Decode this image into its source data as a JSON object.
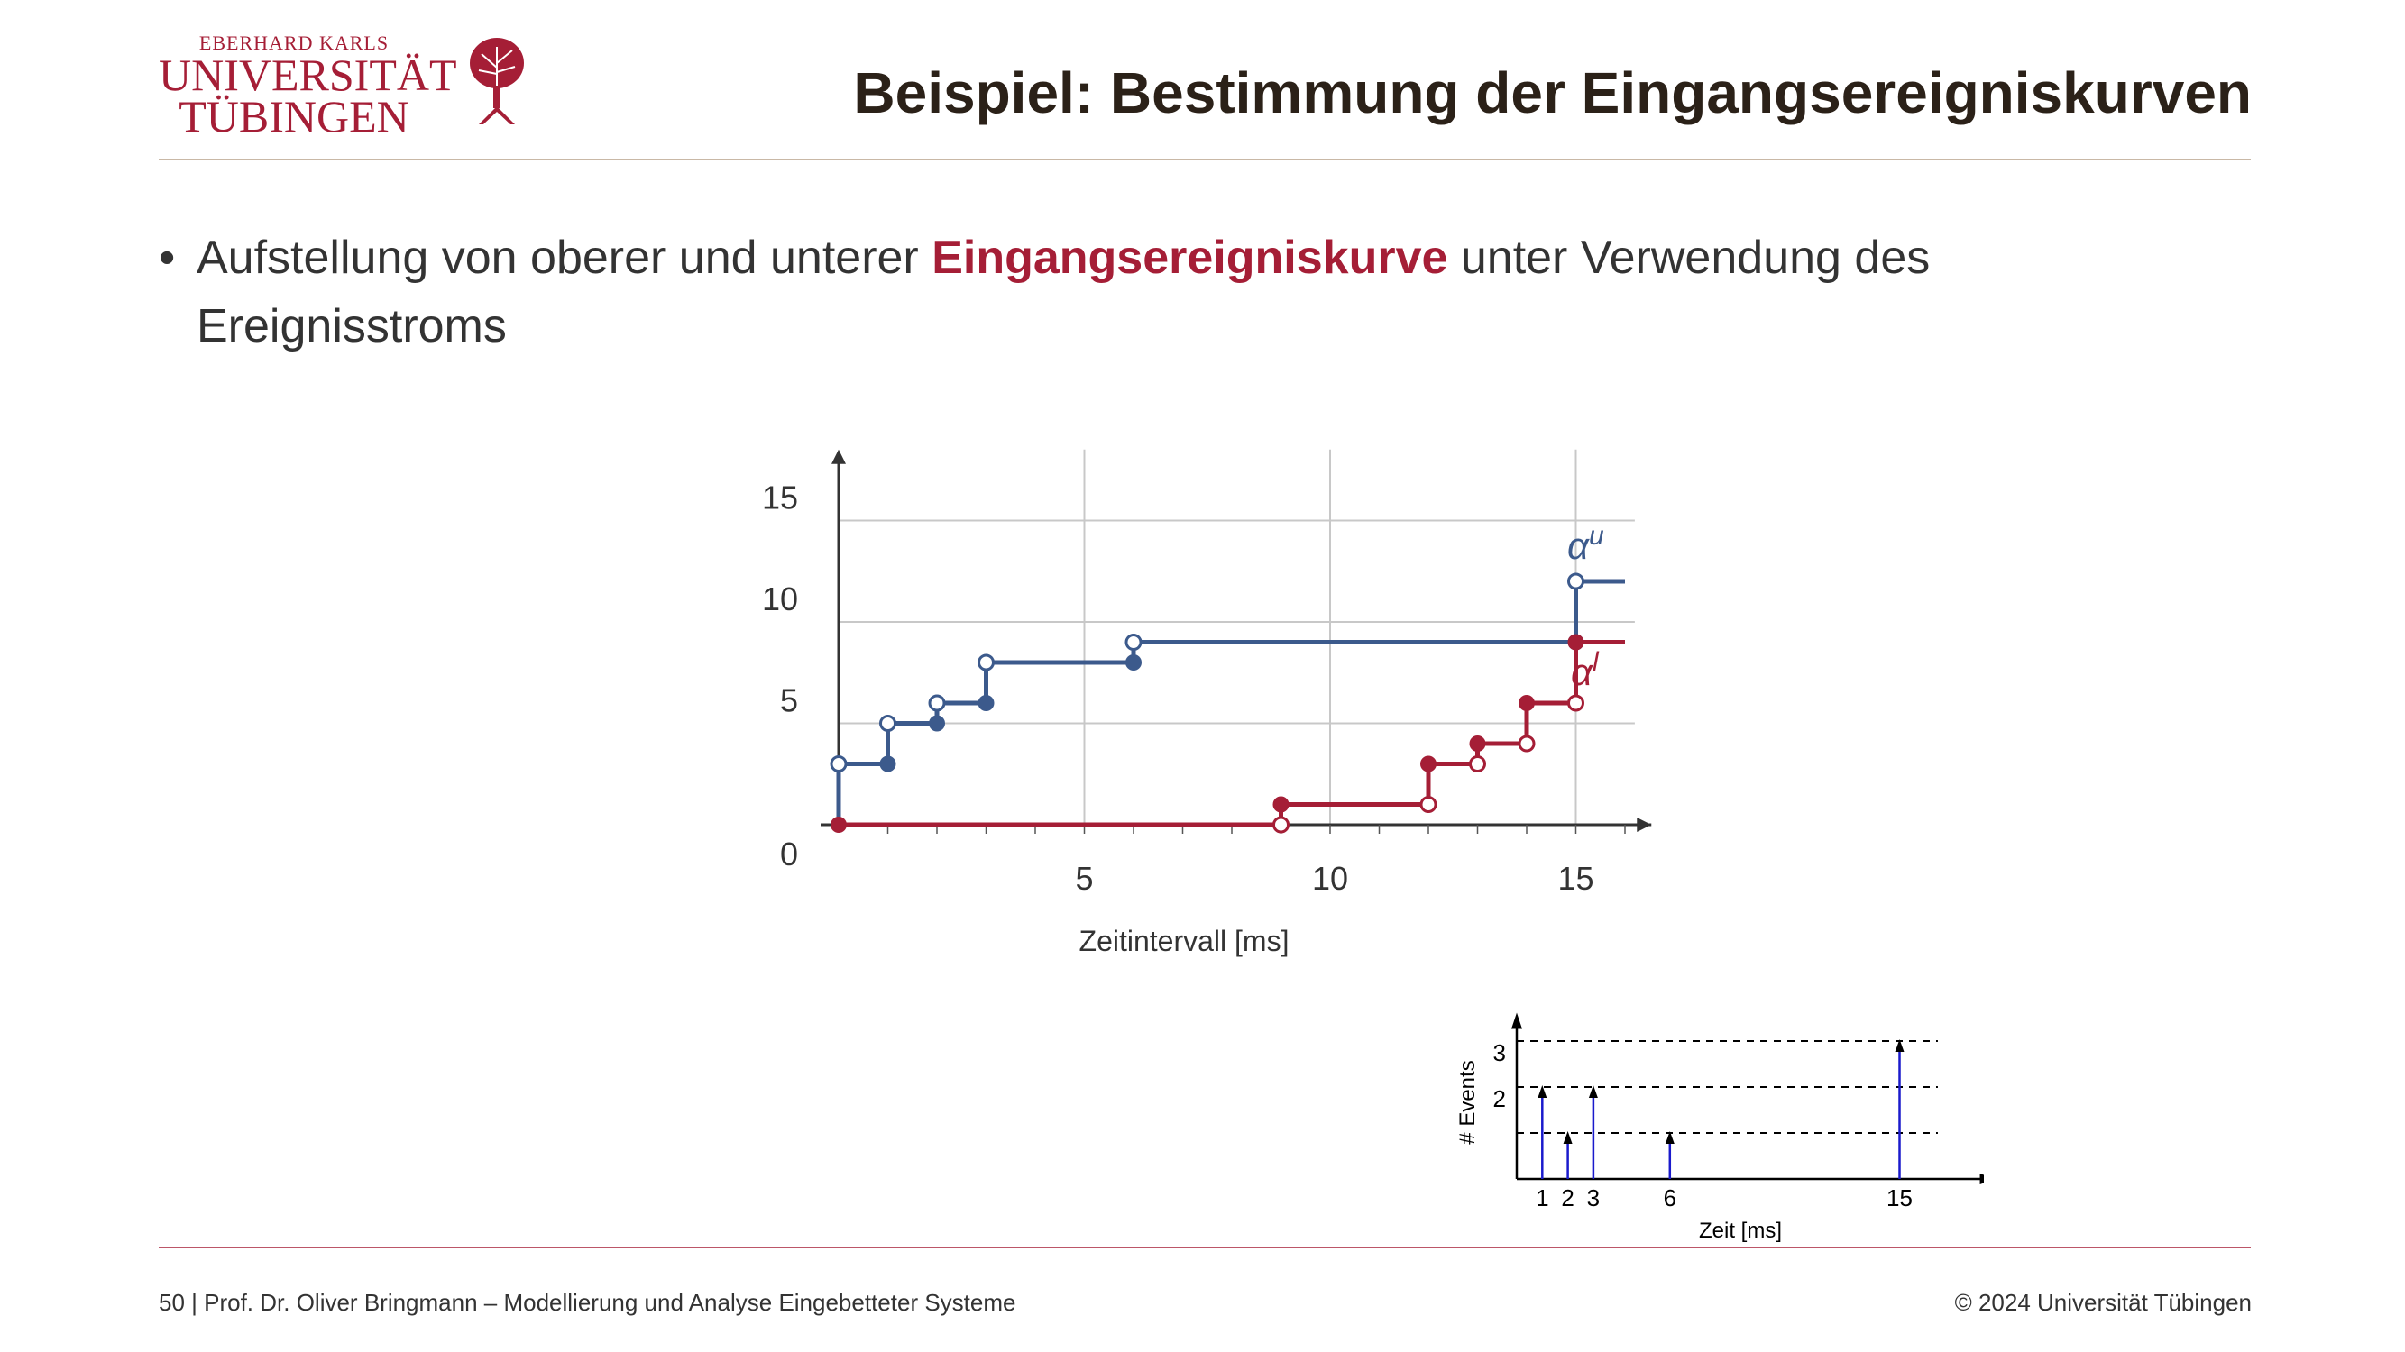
{
  "logo": {
    "line1": "EBERHARD KARLS",
    "line2": "UNIVERSITÄT",
    "line3": "TÜBINGEN"
  },
  "title": "Beispiel: Bestimmung der Eingangsereigniskurven",
  "bullet": {
    "before": "Aufstellung von oberer und unterer ",
    "highlight": "Eingangsereigniskurve",
    "after": " unter Verwendung des Ereignisstroms"
  },
  "colors": {
    "accent": "#a51e36",
    "upper": "#3c5a8c",
    "lower": "#a51e36",
    "stream": "#1a1acc"
  },
  "chart_data": [
    {
      "type": "line",
      "xlabel": "Zeitintervall [ms]",
      "ylabel": "",
      "xticks": [
        "5",
        "10",
        "15"
      ],
      "yticks": [
        "0",
        "5",
        "10",
        "15"
      ],
      "xlim": [
        0,
        16.5
      ],
      "ylim": [
        0,
        18.5
      ],
      "grid": true,
      "series": [
        {
          "name": "α",
          "sup": "u",
          "steps": [
            {
              "x0": 0,
              "x1": 1,
              "y": 3
            },
            {
              "x0": 1,
              "x1": 2,
              "y": 5
            },
            {
              "x0": 2,
              "x1": 3,
              "y": 6
            },
            {
              "x0": 3,
              "x1": 6,
              "y": 8
            },
            {
              "x0": 6,
              "x1": 15,
              "y": 9
            },
            {
              "x0": 15,
              "x1": 16,
              "y": 12
            }
          ]
        },
        {
          "name": "α",
          "sup": "l",
          "steps": [
            {
              "x0": 0,
              "x1": 9,
              "y": 0
            },
            {
              "x0": 9,
              "x1": 12,
              "y": 1
            },
            {
              "x0": 12,
              "x1": 13,
              "y": 3
            },
            {
              "x0": 13,
              "x1": 14,
              "y": 4
            },
            {
              "x0": 14,
              "x1": 15,
              "y": 6
            },
            {
              "x0": 15,
              "x1": 16,
              "y": 9
            }
          ]
        }
      ]
    },
    {
      "type": "bar",
      "xlabel": "Zeit [ms]",
      "ylabel": "# Events",
      "x": [
        1,
        2,
        3,
        6,
        15
      ],
      "values": [
        2,
        1,
        2,
        1,
        3
      ],
      "xticks": [
        "1",
        "2",
        "3",
        "6",
        "15"
      ],
      "yticks": [
        "2",
        "3"
      ],
      "ylim": [
        0,
        3.5
      ],
      "xlim": [
        0,
        18.5
      ]
    }
  ],
  "footer": {
    "left": "50 | Prof. Dr. Oliver Bringmann – Modellierung und Analyse Eingebetteter Systeme",
    "right": "© 2024 Universität Tübingen"
  }
}
